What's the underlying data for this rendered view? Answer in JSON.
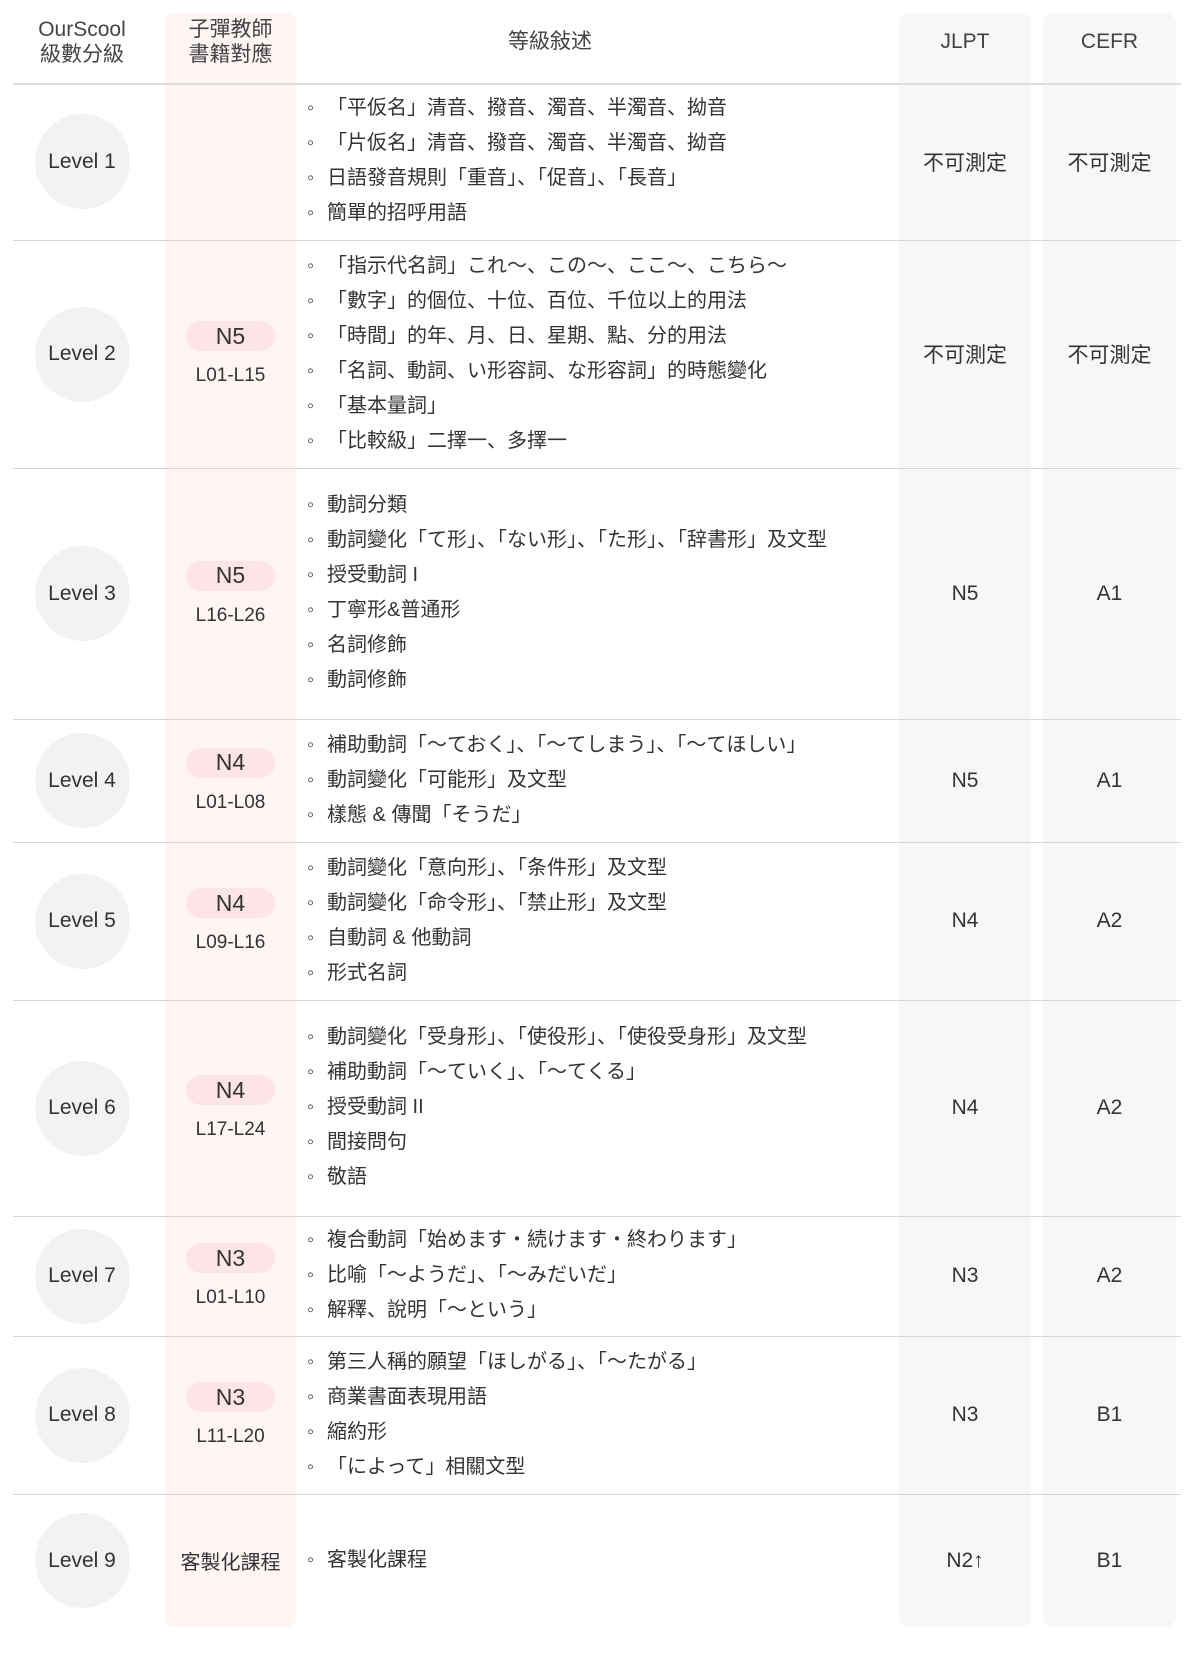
{
  "header": {
    "level": "OurScool 級數分級",
    "level_l1": "OurScool",
    "level_l2": "級數分級",
    "book_l1": "子彈教師",
    "book_l2": "書籍對應",
    "description": "等級敍述",
    "jlpt": "JLPT",
    "cefr": "CEFR"
  },
  "colors": {
    "book_column": "#fff5f5",
    "badge": "#fde4e6",
    "level_circle": "#f2f2f2",
    "exam_columns": "#f7f7f7"
  },
  "rows": [
    {
      "level": "Level 1",
      "badge": "",
      "range": "",
      "custom": "",
      "items": [
        "「平仮名」清音、撥音、濁音、半濁音、拗音",
        "「片仮名」清音、撥音、濁音、半濁音、拗音",
        "日語發音規則「重音」、「促音」、「長音」",
        "簡單的招呼用語"
      ],
      "jlpt": "不可測定",
      "cefr": "不可測定"
    },
    {
      "level": "Level 2",
      "badge": "N5",
      "range": "L01-L15",
      "custom": "",
      "items": [
        "「指示代名詞」これ〜、この〜、ここ〜、こちら〜",
        "「數字」的個位、十位、百位、千位以上的用法",
        "「時間」的年、月、日、星期、點、分的用法",
        "「名詞、動詞、い形容詞、な形容詞」的時態變化",
        "「基本量詞」",
        "「比較級」二擇一、多擇一"
      ],
      "jlpt": "不可測定",
      "cefr": "不可測定"
    },
    {
      "level": "Level 3",
      "badge": "N5",
      "range": "L16-L26",
      "custom": "",
      "items": [
        "動詞分類",
        "動詞變化「て形」、「ない形」、「た形」、「辞書形」及文型",
        "授受動詞 I",
        "丁寧形&普通形",
        "名詞修飾",
        "動詞修飾"
      ],
      "jlpt": "N5",
      "cefr": "A1"
    },
    {
      "level": "Level 4",
      "badge": "N4",
      "range": "L01-L08",
      "custom": "",
      "items": [
        "補助動詞「〜ておく」、「〜てしまう」、「〜てほしい」",
        "動詞變化「可能形」及文型",
        "樣態 & 傳聞「そうだ」"
      ],
      "jlpt": "N5",
      "cefr": "A1"
    },
    {
      "level": "Level 5",
      "badge": "N4",
      "range": "L09-L16",
      "custom": "",
      "items": [
        "動詞變化「意向形」、「条件形」及文型",
        "動詞變化「命令形」、「禁止形」及文型",
        "自動詞 & 他動詞",
        "形式名詞"
      ],
      "jlpt": "N4",
      "cefr": "A2"
    },
    {
      "level": "Level 6",
      "badge": "N4",
      "range": "L17-L24",
      "custom": "",
      "items": [
        "動詞變化「受身形」、「使役形」、「使役受身形」及文型",
        "補助動詞「〜ていく」、「〜てくる」",
        "授受動詞 II",
        "間接問句",
        "敬語"
      ],
      "jlpt": "N4",
      "cefr": "A2"
    },
    {
      "level": "Level 7",
      "badge": "N3",
      "range": "L01-L10",
      "custom": "",
      "items": [
        "複合動詞「始めます・続けます・終わります」",
        "比喻「〜ようだ」、「〜みだいだ」",
        "解釋、說明「〜という」"
      ],
      "jlpt": "N3",
      "cefr": "A2"
    },
    {
      "level": "Level 8",
      "badge": "N3",
      "range": "L11-L20",
      "custom": "",
      "items": [
        "第三人稱的願望「ほしがる」、「〜たがる」",
        "商業書面表現用語",
        "縮約形",
        "「によって」相關文型"
      ],
      "jlpt": "N3",
      "cefr": "B1"
    },
    {
      "level": "Level 9",
      "badge": "",
      "range": "",
      "custom": "客製化課程",
      "items": [
        "客製化課程"
      ],
      "jlpt": "N2↑",
      "cefr": "B1"
    }
  ]
}
